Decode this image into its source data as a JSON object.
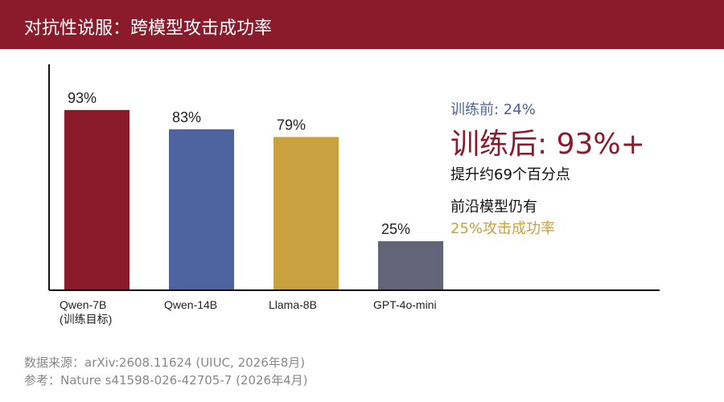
{
  "header": {
    "title": "对抗性说服：跨模型攻击成功率"
  },
  "chart_data": {
    "type": "bar",
    "title": "",
    "xlabel": "",
    "ylabel": "",
    "ylim": [
      0,
      100
    ],
    "grid": false,
    "categories": [
      [
        "Qwen-7B",
        "(训练目标)"
      ],
      [
        "Qwen-14B"
      ],
      [
        "Llama-8B"
      ],
      [
        "GPT-4o-mini"
      ]
    ],
    "values": [
      93,
      83,
      79,
      25
    ],
    "value_labels": [
      "93%",
      "83%",
      "79%",
      "25%"
    ],
    "colors": [
      "#8b1a2b",
      "#4e64a0",
      "#c9a13e",
      "#63637a"
    ]
  },
  "callouts": {
    "before": "训练前: 24%",
    "after": "训练后: 93%+",
    "gain": "提升约69个百分点",
    "frontier_line1": "前沿模型仍有",
    "frontier_line2": "25%攻击成功率"
  },
  "footer": {
    "source": "数据来源：arXiv:2608.11624 (UIUC, 2026年8月)",
    "reference": "参考：Nature s41598-026-42705-7 (2026年4月)"
  }
}
